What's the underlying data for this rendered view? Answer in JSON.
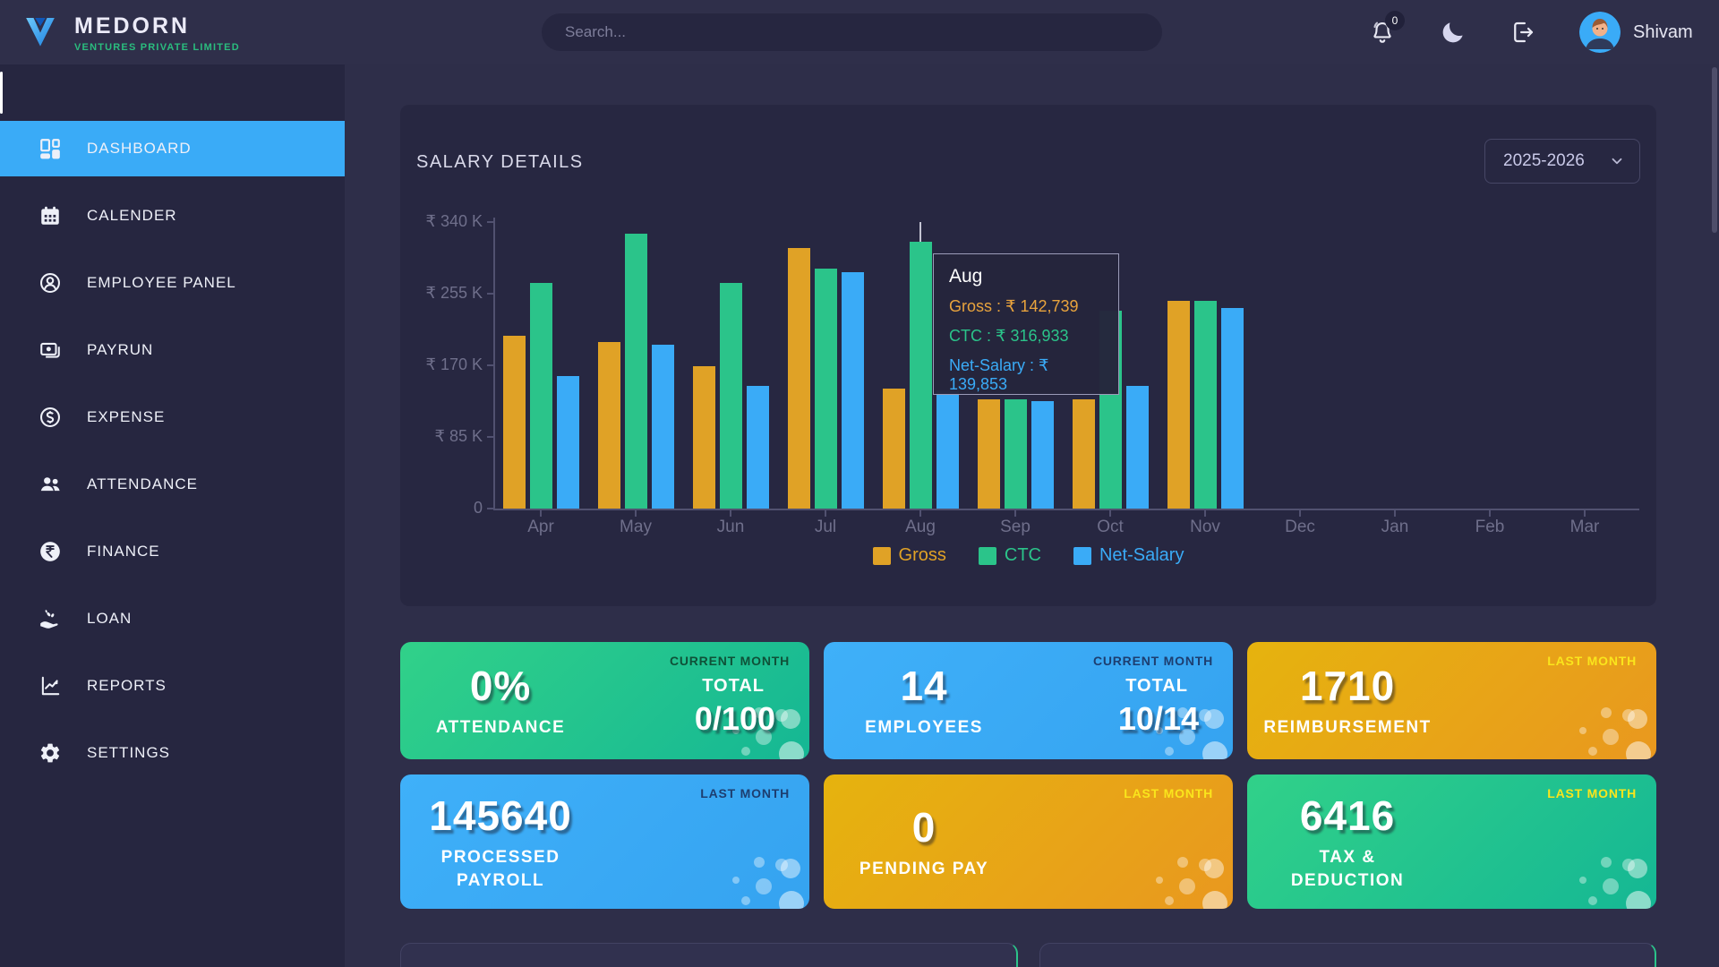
{
  "navbar": {
    "brand": {
      "name": "MEDORN",
      "tagline": "VENTURES PRIVATE LIMITED"
    },
    "search_placeholder": "Search...",
    "notification_count": "0",
    "user_name": "Shivam"
  },
  "sidebar": {
    "items": [
      {
        "label": "DASHBOARD",
        "icon": "dashboard-icon",
        "active": true
      },
      {
        "label": "CALENDER",
        "icon": "calendar-icon",
        "active": false
      },
      {
        "label": "EMPLOYEE PANEL",
        "icon": "employee-icon",
        "active": false
      },
      {
        "label": "PAYRUN",
        "icon": "payrun-icon",
        "active": false
      },
      {
        "label": "EXPENSE",
        "icon": "expense-icon",
        "active": false
      },
      {
        "label": "ATTENDANCE",
        "icon": "attendance-icon",
        "active": false
      },
      {
        "label": "FINANCE",
        "icon": "finance-icon",
        "active": false
      },
      {
        "label": "LOAN",
        "icon": "loan-icon",
        "active": false
      },
      {
        "label": "REPORTS",
        "icon": "reports-icon",
        "active": false
      },
      {
        "label": "SETTINGS",
        "icon": "settings-icon",
        "active": false
      }
    ]
  },
  "salary_card": {
    "title": "SALARY DETAILS",
    "year_selector": "2025-2026",
    "tooltip": {
      "month": "Aug",
      "gross": "Gross : ₹ 142,739",
      "ctc": "CTC : ₹ 316,933",
      "net": "Net-Salary : ₹ 139,853"
    }
  },
  "chart_data": {
    "type": "bar",
    "title": "SALARY DETAILS",
    "categories": [
      "Apr",
      "May",
      "Jun",
      "Jul",
      "Aug",
      "Sep",
      "Oct",
      "Nov",
      "Dec",
      "Jan",
      "Feb",
      "Mar"
    ],
    "series": [
      {
        "name": "Gross",
        "color": "#e0a226",
        "values_k": [
          205,
          198,
          169,
          309,
          142.7,
          130,
          130,
          247,
          0,
          0,
          0,
          0
        ]
      },
      {
        "name": "CTC",
        "color": "#2bc48a",
        "values_k": [
          268,
          326,
          268,
          285,
          316.9,
          130,
          235,
          247,
          0,
          0,
          0,
          0
        ]
      },
      {
        "name": "Net-Salary",
        "color": "#3aabf7",
        "values_k": [
          157,
          194,
          146,
          280,
          139.9,
          128,
          146,
          238,
          0,
          0,
          0,
          0
        ]
      }
    ],
    "y_ticks": [
      {
        "label": "₹ 340 K",
        "value": 340
      },
      {
        "label": "₹ 255 K",
        "value": 255
      },
      {
        "label": "₹ 170 K",
        "value": 170
      },
      {
        "label": "₹ 85 K",
        "value": 85
      },
      {
        "label": "0",
        "value": 0
      }
    ],
    "ylim": [
      0,
      340
    ],
    "ylabel_unit": "K (₹ thousands)",
    "grid": false,
    "legend_position": "bottom",
    "highlighted_point": {
      "month": "Aug",
      "gross": 142739,
      "ctc": 316933,
      "net_salary": 139853
    }
  },
  "stat_cards": [
    {
      "value": "0%",
      "label": "ATTENDANCE",
      "period": "CURRENT MONTH",
      "period_style": "dark-green",
      "total_label": "TOTAL",
      "total_value": "0/100",
      "theme": "green"
    },
    {
      "value": "14",
      "label": "EMPLOYEES",
      "period": "CURRENT MONTH",
      "period_style": "navy",
      "total_label": "TOTAL",
      "total_value": "10/14",
      "theme": "blue"
    },
    {
      "value": "1710",
      "label": "REIMBURSEMENT",
      "period": "LAST MONTH",
      "period_style": "yellow",
      "theme": "gold"
    },
    {
      "value": "145640",
      "label": "PROCESSED PAYROLL",
      "period": "LAST MONTH",
      "period_style": "navy",
      "theme": "blue"
    },
    {
      "value": "0",
      "label": "PENDING PAY",
      "period": "LAST MONTH",
      "period_style": "yellow",
      "theme": "gold"
    },
    {
      "value": "6416",
      "label": "TAX & DEDUCTION",
      "period": "LAST MONTH",
      "period_style": "yellow",
      "theme": "green"
    }
  ],
  "colors": {
    "background": "#2e2e49",
    "sidebar": "#262640",
    "card": "#272741",
    "accent_blue": "#3aabf7",
    "accent_green": "#2bc48a",
    "accent_gold": "#e0a226"
  }
}
